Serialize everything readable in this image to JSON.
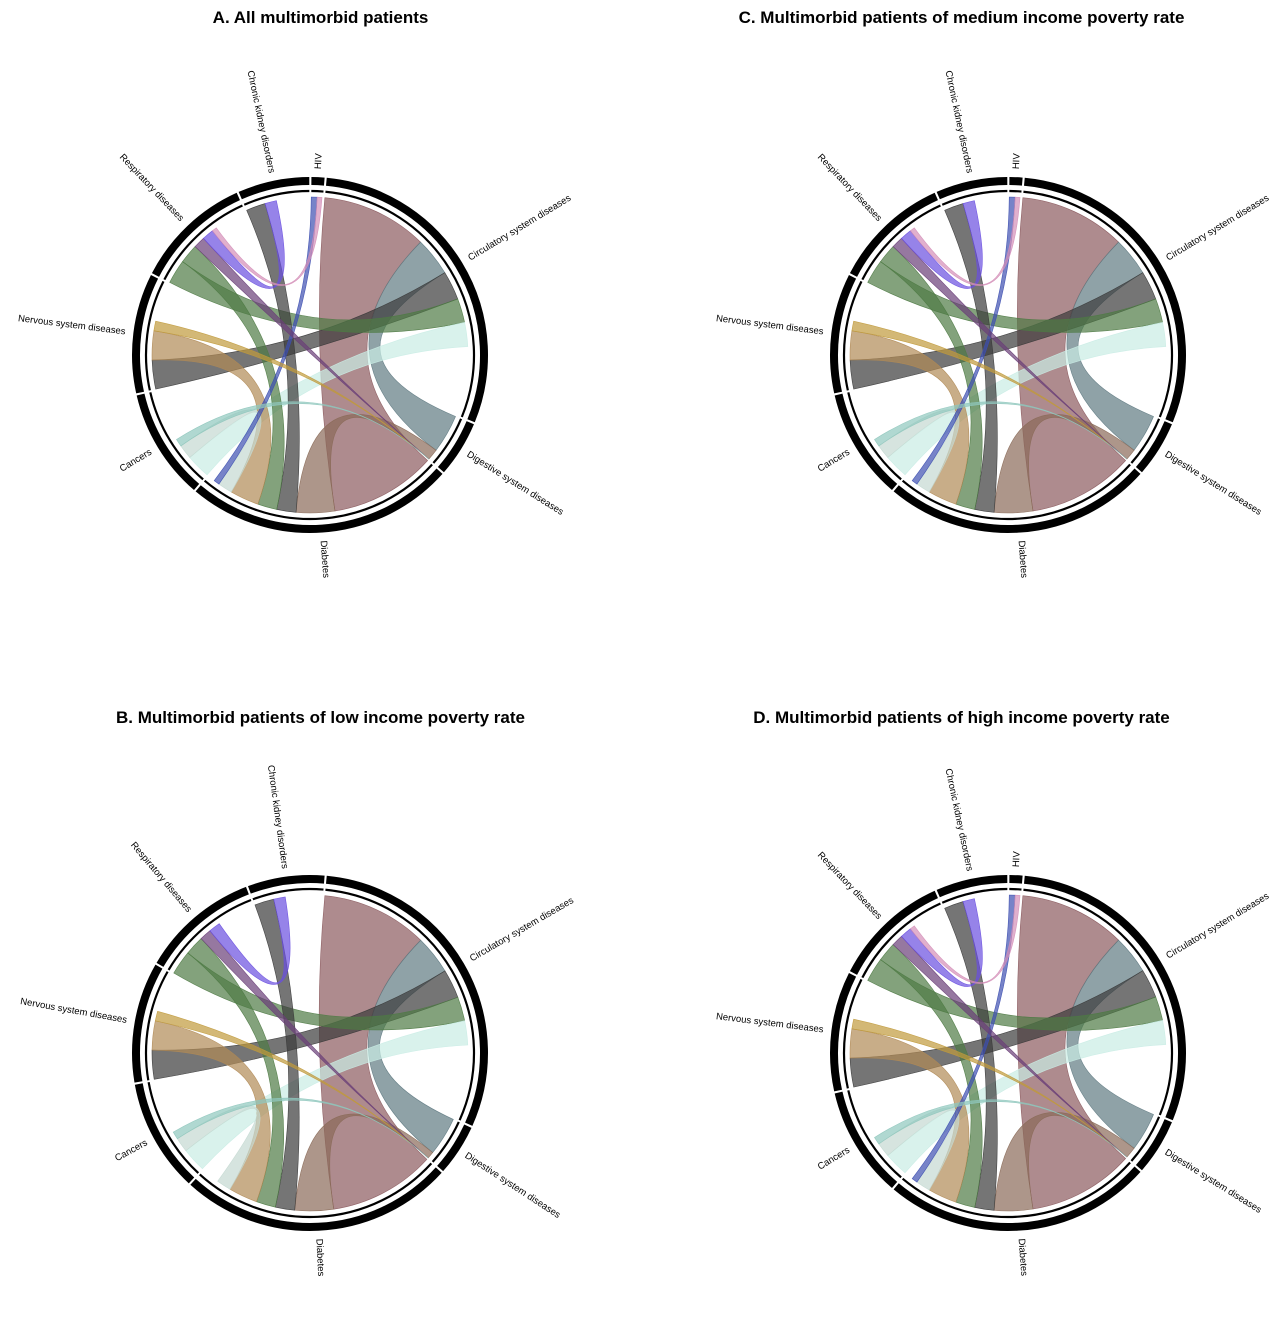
{
  "panels": [
    {
      "id": "A",
      "title": "A. All multimorbid patients",
      "sectors": [
        {
          "label": "Circulatory system diseases",
          "share": 0.251,
          "color": "#8b5a5e"
        },
        {
          "label": "Digestive system diseases",
          "share": 0.043,
          "color": "#6e848c"
        },
        {
          "label": "Diabetes",
          "share": 0.207,
          "color": "#9c7a6a"
        },
        {
          "label": "Cancers",
          "share": 0.085,
          "color": "#c4d9d2"
        },
        {
          "label": "Nervous system diseases",
          "share": 0.092,
          "color": "#b08a55"
        },
        {
          "label": "Respiratory diseases",
          "share": 0.09,
          "color": "#5a7a4e"
        },
        {
          "label": "Chronic kidney disorders",
          "share": 0.055,
          "color": "#444444"
        },
        {
          "label": "HIV",
          "share": 0.01,
          "color": "#d48fb8"
        }
      ]
    },
    {
      "id": "C",
      "title": "C. Multimorbid patients of medium income poverty rate",
      "sectors": [
        {
          "label": "Circulatory system diseases",
          "share": 0.251,
          "color": "#8b5a5e"
        },
        {
          "label": "Digestive system diseases",
          "share": 0.043,
          "color": "#6e848c"
        },
        {
          "label": "Diabetes",
          "share": 0.207,
          "color": "#9c7a6a"
        },
        {
          "label": "Cancers",
          "share": 0.085,
          "color": "#c4d9d2"
        },
        {
          "label": "Nervous system diseases",
          "share": 0.092,
          "color": "#b08a55"
        },
        {
          "label": "Respiratory diseases",
          "share": 0.09,
          "color": "#5a7a4e"
        },
        {
          "label": "Chronic kidney disorders",
          "share": 0.055,
          "color": "#444444"
        },
        {
          "label": "HIV",
          "share": 0.01,
          "color": "#d48fb8"
        }
      ]
    },
    {
      "id": "B",
      "title": "B. Multimorbid patients of low income poverty rate",
      "sectors": [
        {
          "label": "Circulatory system diseases",
          "share": 0.26,
          "color": "#8b5a5e"
        },
        {
          "label": "Digestive system diseases",
          "share": 0.04,
          "color": "#6e848c"
        },
        {
          "label": "Diabetes",
          "share": 0.215,
          "color": "#9c7a6a"
        },
        {
          "label": "Cancers",
          "share": 0.088,
          "color": "#c4d9d2"
        },
        {
          "label": "Nervous system diseases",
          "share": 0.094,
          "color": "#b08a55"
        },
        {
          "label": "Respiratory diseases",
          "share": 0.092,
          "color": "#5a7a4e"
        },
        {
          "label": "Chronic kidney disorders",
          "share": 0.06,
          "color": "#444444"
        }
      ]
    },
    {
      "id": "D",
      "title": "D. Multimorbid patients of high income poverty rate",
      "sectors": [
        {
          "label": "Circulatory system diseases",
          "share": 0.251,
          "color": "#8b5a5e"
        },
        {
          "label": "Digestive system diseases",
          "share": 0.043,
          "color": "#6e848c"
        },
        {
          "label": "Diabetes",
          "share": 0.207,
          "color": "#9c7a6a"
        },
        {
          "label": "Cancers",
          "share": 0.085,
          "color": "#c4d9d2"
        },
        {
          "label": "Nervous system diseases",
          "share": 0.092,
          "color": "#b08a55"
        },
        {
          "label": "Respiratory diseases",
          "share": 0.09,
          "color": "#5a7a4e"
        },
        {
          "label": "Chronic kidney disorders",
          "share": 0.055,
          "color": "#444444"
        },
        {
          "label": "HIV",
          "share": 0.01,
          "color": "#d48fb8"
        }
      ]
    }
  ],
  "chords": [
    {
      "from": "Circulatory system diseases",
      "to": "Diabetes",
      "width": 0.11,
      "color": "#8b5a5e"
    },
    {
      "from": "Circulatory system diseases",
      "to": "Digestive system diseases",
      "width": 0.04,
      "color": "#5f7a82"
    },
    {
      "from": "Circulatory system diseases",
      "to": "Nervous system diseases",
      "width": 0.03,
      "color": "#3a3a3a"
    },
    {
      "from": "Circulatory system diseases",
      "to": "Respiratory diseases",
      "width": 0.025,
      "color": "#4e7a44"
    },
    {
      "from": "Circulatory system diseases",
      "to": "Cancers",
      "width": 0.025,
      "color": "#c9ece4"
    },
    {
      "from": "Diabetes",
      "to": "Digestive system diseases",
      "width": 0.04,
      "color": "#8a6a58"
    },
    {
      "from": "Diabetes",
      "to": "Chronic kidney disorders",
      "width": 0.02,
      "color": "#3a3a3a"
    },
    {
      "from": "Diabetes",
      "to": "Respiratory diseases",
      "width": 0.02,
      "color": "#4e7a44"
    },
    {
      "from": "Diabetes",
      "to": "Nervous system diseases",
      "width": 0.03,
      "color": "#b08a55"
    },
    {
      "from": "Diabetes",
      "to": "Cancers",
      "width": 0.015,
      "color": "#c4d9d2"
    },
    {
      "from": "HIV",
      "to": "Diabetes",
      "width": 0.006,
      "color": "#3d4fb0"
    },
    {
      "from": "Nervous system diseases",
      "to": "Digestive system diseases",
      "width": 0.01,
      "color": "#c09a3c"
    },
    {
      "from": "Respiratory diseases",
      "to": "Digestive system diseases",
      "width": 0.012,
      "color": "#6a3f78"
    },
    {
      "from": "Cancers",
      "to": "Digestive system diseases",
      "width": 0.008,
      "color": "#8fc7bd"
    },
    {
      "from": "Respiratory diseases",
      "to": "Chronic kidney disorders",
      "width": 0.012,
      "color": "#6a4fe0"
    },
    {
      "from": "HIV",
      "to": "Respiratory diseases",
      "width": 0.005,
      "color": "#d48fb8"
    }
  ]
}
